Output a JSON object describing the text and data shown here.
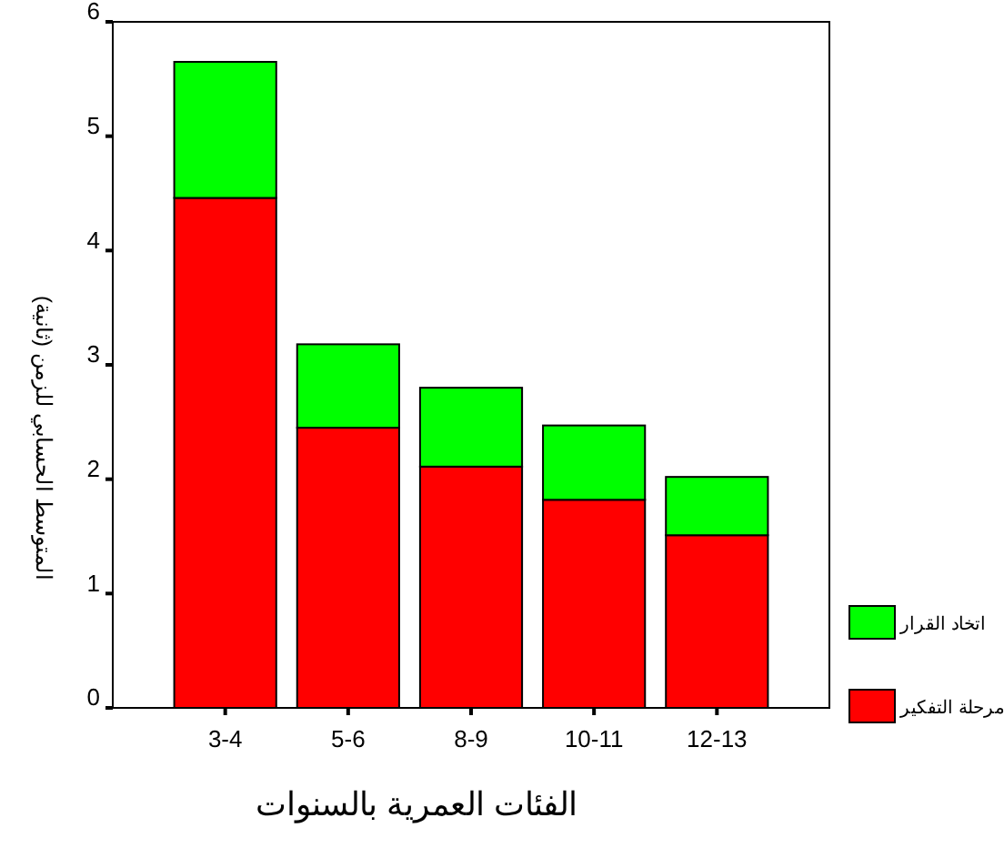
{
  "chart_data": {
    "type": "bar",
    "stacked": true,
    "xlabel": "الفئات العمرية بالسنوات",
    "ylabel": "المتوسط الحسابي للزمن (ثانية)",
    "categories": [
      "3-4",
      "5-6",
      "8-9",
      "10-11",
      "12-13"
    ],
    "series": [
      {
        "name": "مرحلة التفكير",
        "color": "#ff0000",
        "values": [
          4.46,
          2.45,
          2.11,
          1.82,
          1.51
        ]
      },
      {
        "name": "اتخاد القرار",
        "color": "#00ff00",
        "values": [
          1.19,
          0.73,
          0.69,
          0.65,
          0.51
        ]
      }
    ],
    "ylim": [
      0,
      6
    ],
    "yticks": [
      0,
      1,
      2,
      3,
      4,
      5,
      6
    ],
    "grid": false,
    "legend": "bottom right"
  }
}
